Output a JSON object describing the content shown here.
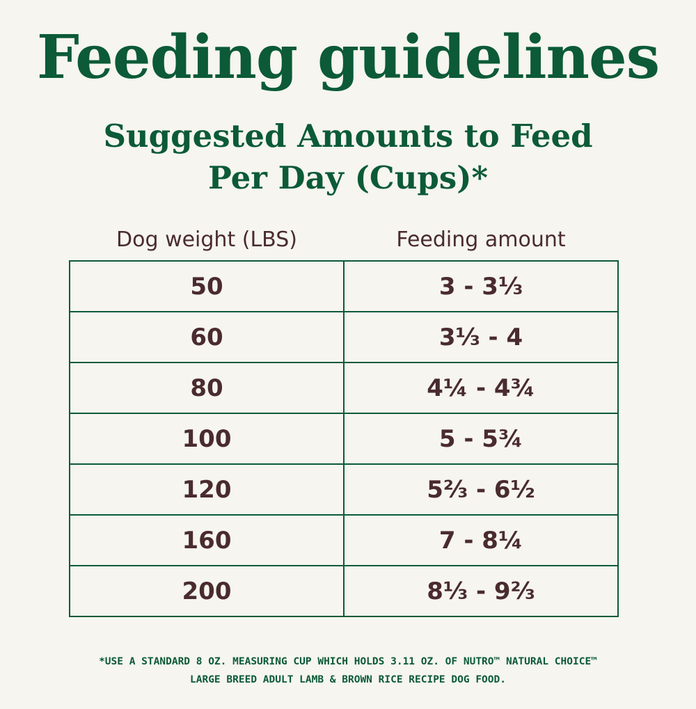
{
  "title": "Feeding guidelines",
  "subtitle": {
    "line1": "Suggested Amounts to Feed",
    "line2": "Per Day (Cups)*"
  },
  "table": {
    "headers": [
      "Dog weight (LBS)",
      "Feeding amount"
    ],
    "rows": [
      {
        "weight": "50",
        "amount": "3 - 3⅓"
      },
      {
        "weight": "60",
        "amount": "3⅓ - 4"
      },
      {
        "weight": "80",
        "amount": "4¼ - 4¾"
      },
      {
        "weight": "100",
        "amount": "5 - 5¾"
      },
      {
        "weight": "120",
        "amount": "5⅔ - 6½"
      },
      {
        "weight": "160",
        "amount": "7 - 8¼"
      },
      {
        "weight": "200",
        "amount": "8⅓ - 9⅔"
      }
    ]
  },
  "footnote": {
    "line1": "*USE A STANDARD 8 OZ. MEASURING CUP WHICH HOLDS 3.11 OZ. OF NUTRO™ NATURAL CHOICE™",
    "line2": "LARGE BREED ADULT LAMB & BROWN RICE RECIPE DOG FOOD."
  },
  "colors": {
    "green": "#0c5a37",
    "text_brown": "#4a2b2e",
    "background": "#f6f5f0"
  }
}
